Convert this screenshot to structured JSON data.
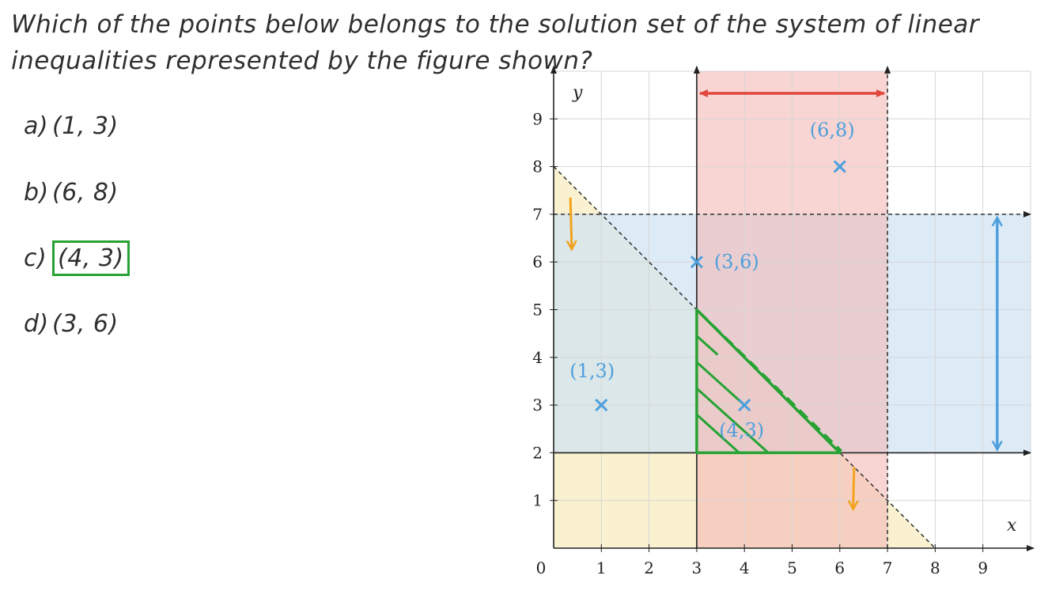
{
  "question": "Which of the points below belongs to the solution set of the system of linear inequalities represented by the figure shown?",
  "options": [
    {
      "letter": "a)",
      "value": "(1, 3)",
      "selected": false
    },
    {
      "letter": "b)",
      "value": "(6, 8)",
      "selected": false
    },
    {
      "letter": "c)",
      "value": "(4, 3)",
      "selected": true
    },
    {
      "letter": "d)",
      "value": "(3, 6)",
      "selected": false
    }
  ],
  "chart_data": {
    "type": "scatter",
    "xlabel": "x",
    "ylabel": "y",
    "xlim": [
      0,
      10
    ],
    "ylim": [
      0,
      10
    ],
    "x_ticks": [
      "1",
      "2",
      "3",
      "4",
      "5",
      "6",
      "7",
      "8",
      "9"
    ],
    "y_ticks": [
      "1",
      "2",
      "3",
      "4",
      "5",
      "6",
      "7",
      "8",
      "9"
    ],
    "origin_label": "0",
    "grid": true,
    "boundaries": [
      {
        "equation": "x = 3",
        "style": "solid",
        "shaded": "x >= 3",
        "color": "#f3b9b5"
      },
      {
        "equation": "x = 7",
        "style": "dashed",
        "shaded": "x < 7",
        "color": "#f3b9b5"
      },
      {
        "equation": "y = 7",
        "style": "dashed",
        "shaded": "y < 7",
        "color": "#cfe3f4"
      },
      {
        "equation": "y = 2",
        "style": "solid",
        "shaded": "y >= 2",
        "color": "#cfe3f4"
      },
      {
        "equation": "y = 8 - x",
        "style": "dashed",
        "shaded": "y < 8 - x",
        "color": "#f8efc8"
      }
    ],
    "solution_region": [
      [
        3,
        2
      ],
      [
        3,
        5
      ],
      [
        6,
        2
      ]
    ],
    "points": [
      {
        "x": 1,
        "y": 3,
        "label": "(1,3)"
      },
      {
        "x": 6,
        "y": 8,
        "label": "(6,8)"
      },
      {
        "x": 3,
        "y": 6,
        "label": "(3,6)"
      },
      {
        "x": 4,
        "y": 3,
        "label": "(4,3)"
      }
    ],
    "colors": {
      "red": "#e0463c",
      "blue": "#4d9fdc",
      "orange": "#f2a31d",
      "green": "#27a234"
    }
  }
}
